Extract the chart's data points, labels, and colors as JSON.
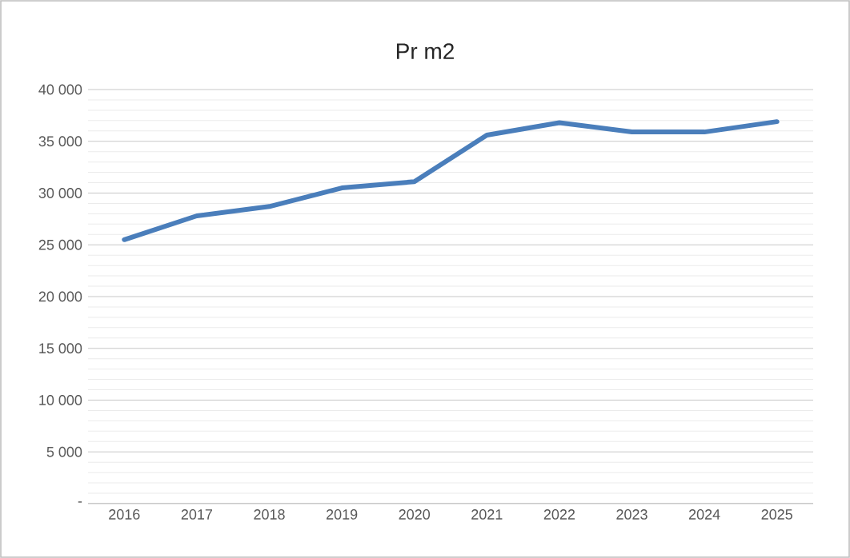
{
  "chart_data": {
    "type": "line",
    "title": "Pr m2",
    "categories": [
      "2016",
      "2017",
      "2018",
      "2019",
      "2020",
      "2021",
      "2022",
      "2023",
      "2024",
      "2025"
    ],
    "values": [
      25500,
      27800,
      28700,
      30500,
      31100,
      35600,
      36800,
      35900,
      35900,
      36900
    ],
    "color": "#4a7ebb",
    "ylim": [
      0,
      40000
    ],
    "yticks": [
      {
        "value": 0,
        "label": "-"
      },
      {
        "value": 5000,
        "label": "5 000"
      },
      {
        "value": 10000,
        "label": "10 000"
      },
      {
        "value": 15000,
        "label": "15 000"
      },
      {
        "value": 20000,
        "label": "20 000"
      },
      {
        "value": 25000,
        "label": "25 000"
      },
      {
        "value": 30000,
        "label": "30 000"
      },
      {
        "value": 35000,
        "label": "35 000"
      },
      {
        "value": 40000,
        "label": "40 000"
      }
    ],
    "grid": "y",
    "legend": false,
    "marker": "none",
    "line_style": "solid"
  }
}
